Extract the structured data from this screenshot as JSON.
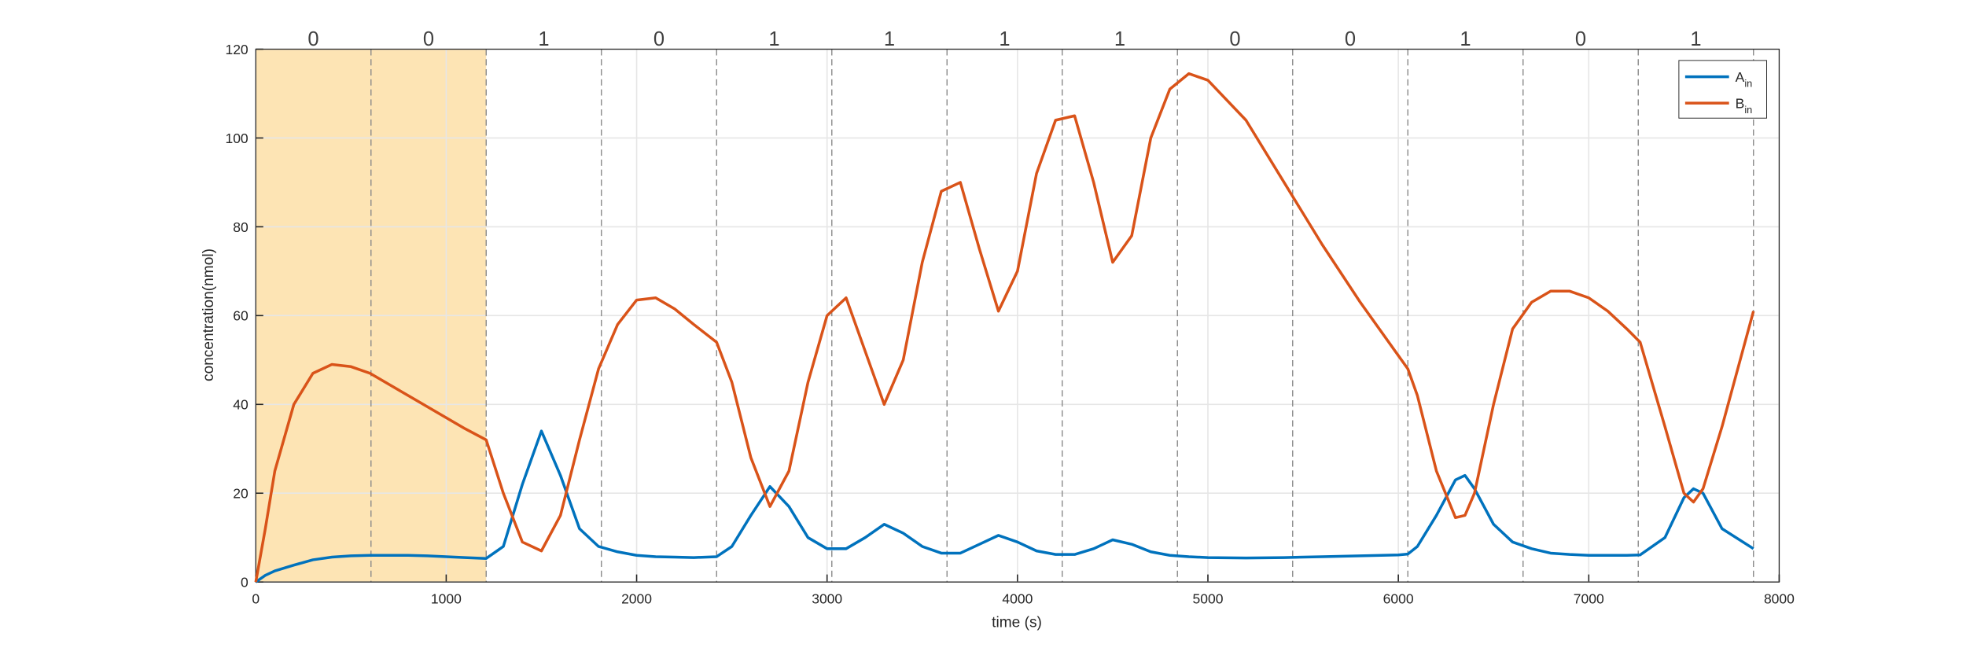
{
  "chart_data": {
    "type": "line",
    "xlabel": "time (s)",
    "ylabel": "concentration(nmol)",
    "xlim": [
      0,
      8000
    ],
    "xticks": [
      0,
      1000,
      2000,
      3000,
      4000,
      5000,
      6000,
      7000,
      8000
    ],
    "ylim": [
      0,
      120
    ],
    "yticks": [
      0,
      20,
      40,
      60,
      80,
      100,
      120
    ],
    "grid": true,
    "legend": "top-right",
    "highlight": {
      "range": [
        0,
        1210
      ],
      "color": "#fde4b4"
    },
    "bit_boundaries": [
      605,
      1210,
      1815,
      2420,
      3025,
      3630,
      4235,
      4840,
      5445,
      6050,
      6655,
      7260,
      7865
    ],
    "bits": [
      0,
      0,
      1,
      0,
      1,
      1,
      1,
      1,
      0,
      0,
      1,
      0,
      1
    ],
    "x": [
      0,
      50,
      100,
      200,
      300,
      400,
      500,
      600,
      700,
      800,
      900,
      1000,
      1100,
      1210,
      1300,
      1400,
      1500,
      1600,
      1700,
      1800,
      1900,
      2000,
      2100,
      2200,
      2300,
      2420,
      2500,
      2600,
      2700,
      2800,
      2900,
      3000,
      3100,
      3200,
      3300,
      3400,
      3500,
      3600,
      3700,
      3800,
      3900,
      4000,
      4100,
      4200,
      4300,
      4400,
      4500,
      4600,
      4700,
      4800,
      4900,
      5000,
      5200,
      5400,
      5600,
      5800,
      6000,
      6050,
      6100,
      6200,
      6300,
      6350,
      6400,
      6500,
      6600,
      6700,
      6800,
      6900,
      7000,
      7100,
      7200,
      7270,
      7400,
      7500,
      7550,
      7600,
      7700,
      7865
    ],
    "series": [
      {
        "name": "A_in",
        "color": "#0072bd",
        "values": [
          0,
          1.5,
          2.5,
          3.8,
          5,
          5.6,
          5.9,
          6,
          6,
          6,
          5.9,
          5.7,
          5.5,
          5.3,
          8,
          22,
          34,
          24,
          12,
          8,
          6.8,
          6,
          5.7,
          5.6,
          5.5,
          5.7,
          8,
          15,
          21.5,
          17,
          10,
          7.5,
          7.5,
          10,
          13,
          11,
          8,
          6.5,
          6.5,
          8.5,
          10.5,
          9,
          7,
          6.2,
          6.2,
          7.5,
          9.5,
          8.5,
          6.8,
          6,
          5.7,
          5.5,
          5.4,
          5.5,
          5.7,
          5.9,
          6.1,
          6.3,
          8,
          15,
          23,
          24,
          21,
          13,
          9,
          7.5,
          6.5,
          6.2,
          6,
          6,
          6,
          6.1,
          10,
          19,
          21,
          20,
          12,
          7.5
        ]
      },
      {
        "name": "B_in",
        "color": "#d95319",
        "values": [
          0,
          12,
          25,
          40,
          47,
          49,
          48.5,
          47,
          44.5,
          42,
          39.5,
          37,
          34.5,
          32,
          20,
          9,
          7,
          15,
          32,
          48,
          58,
          63.5,
          64,
          61.5,
          58,
          54,
          45,
          28,
          17,
          25,
          45,
          60,
          64,
          52,
          40,
          50,
          72,
          88,
          90,
          75,
          61,
          70,
          92,
          104,
          105,
          90,
          72,
          78,
          100,
          111,
          114.5,
          113,
          104,
          90,
          76,
          63,
          51,
          48,
          42,
          25,
          14.5,
          15,
          20,
          40,
          57,
          63,
          65.5,
          65.5,
          64,
          61,
          57,
          54,
          35,
          20,
          18,
          21,
          35,
          61
        ]
      }
    ]
  }
}
